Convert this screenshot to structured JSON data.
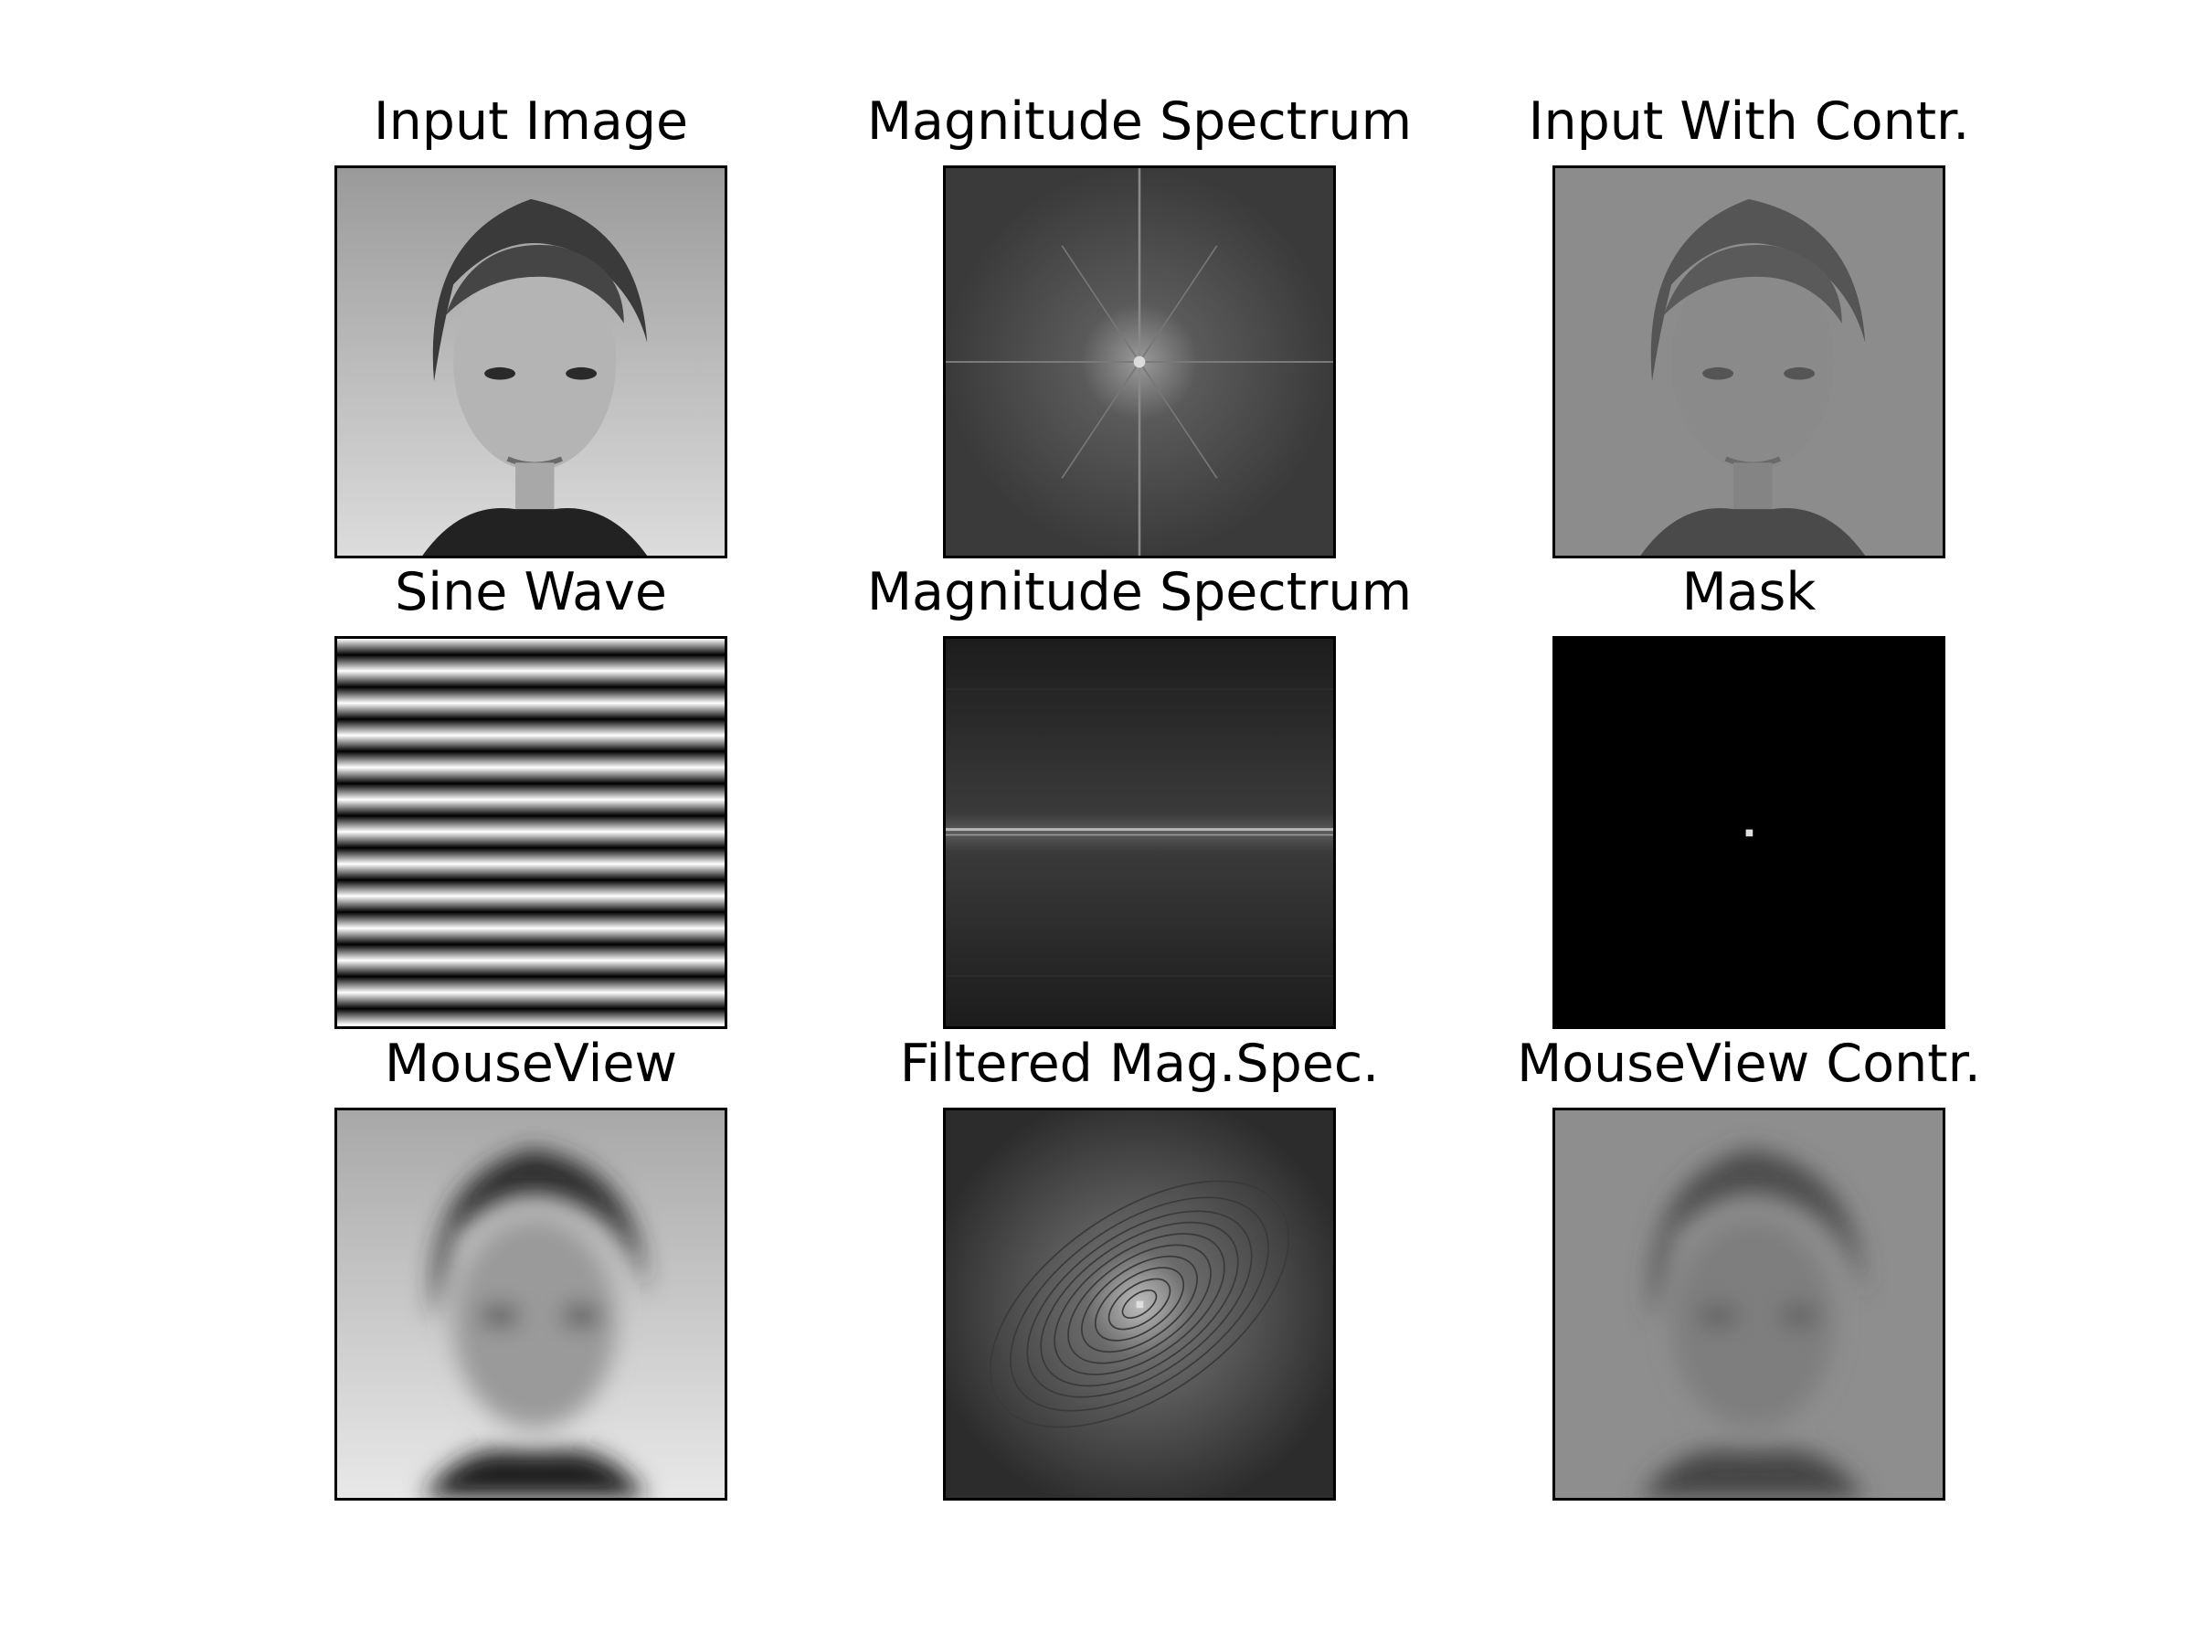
{
  "figure": {
    "panels": [
      {
        "id": "input-image",
        "title": "Input Image"
      },
      {
        "id": "magnitude-spectrum-1",
        "title": "Magnitude Spectrum"
      },
      {
        "id": "input-with-contr",
        "title": "Input With Contr."
      },
      {
        "id": "sine-wave",
        "title": "Sine Wave"
      },
      {
        "id": "magnitude-spectrum-2",
        "title": "Magnitude Spectrum"
      },
      {
        "id": "mask",
        "title": "Mask"
      },
      {
        "id": "mouseview",
        "title": "MouseView"
      },
      {
        "id": "filtered-mag-spec",
        "title": "Filtered Mag.Spec."
      },
      {
        "id": "mouseview-contr",
        "title": "MouseView Contr."
      }
    ]
  },
  "colors": {
    "background": "#ffffff",
    "frame": "#000000"
  }
}
